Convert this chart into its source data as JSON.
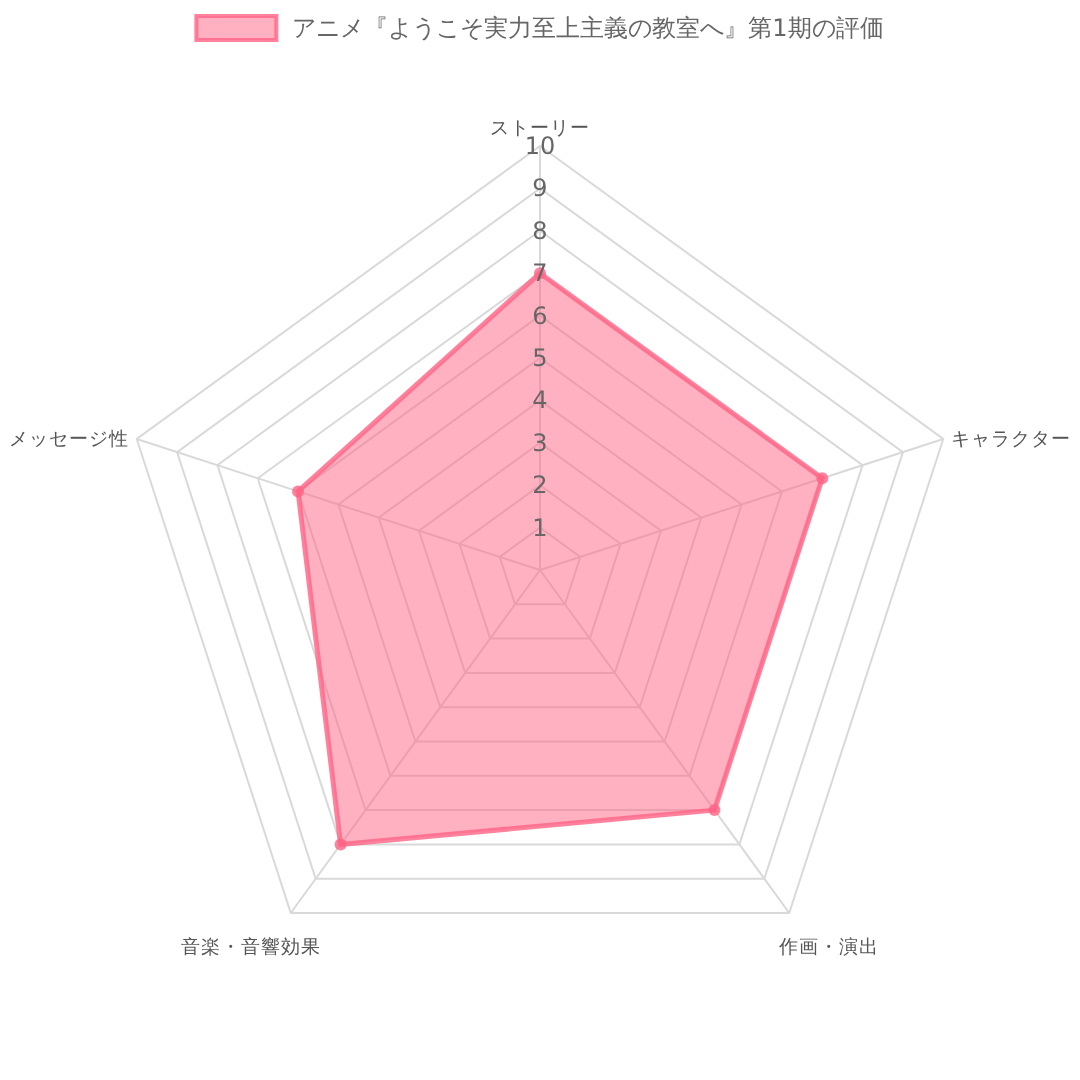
{
  "chart_data": {
    "type": "radar",
    "categories": [
      "ストーリー",
      "キャラクター",
      "作画・演出",
      "音楽・音響効果",
      "メッセージ性"
    ],
    "series": [
      {
        "name": "アニメ『ようこそ実力至上主義の教室へ』第1期の評価",
        "color": "#ff6384",
        "values": [
          7,
          7,
          7,
          8,
          6
        ]
      }
    ],
    "ylim": [
      0,
      10
    ],
    "yticks": [
      1,
      2,
      3,
      4,
      5,
      6,
      7,
      8,
      9,
      10
    ],
    "grid": true,
    "legend": "top",
    "marker": "circle"
  }
}
